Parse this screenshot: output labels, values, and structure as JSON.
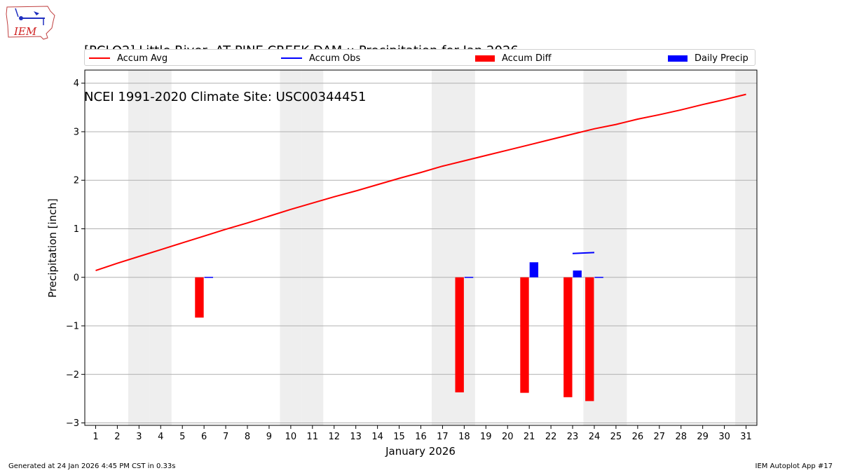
{
  "title_line1": "[PCLO2] Little River  AT PINE CREEK DAM :: Precipitation for Jan 2026",
  "title_line2": "NCEI 1991-2020 Climate Site: USC00344451",
  "logo_text": "IEM",
  "footer_left": "Generated at 24 Jan 2026 4:45 PM CST in 0.33s",
  "footer_right": "IEM Autoplot App #17",
  "colors": {
    "avg": "#ff0000",
    "obs": "#0000ff",
    "diff": "#ff0000",
    "daily": "#0000ff",
    "weekend": "#eeeeee",
    "grid": "#b0b0b0"
  },
  "legend": [
    {
      "label": "Accum Avg",
      "kind": "line",
      "color": "#ff0000"
    },
    {
      "label": "Accum Obs",
      "kind": "line",
      "color": "#0000ff"
    },
    {
      "label": "Accum Diff",
      "kind": "box",
      "color": "#ff0000"
    },
    {
      "label": "Daily Precip",
      "kind": "box",
      "color": "#0000ff"
    }
  ],
  "chart_data": {
    "type": "bar",
    "xlabel": "January 2026",
    "ylabel": "Precipitation [inch]",
    "xlim": [
      0.5,
      31.5
    ],
    "ylim": [
      -3.05,
      4.27
    ],
    "yticks": [
      4,
      3,
      2,
      1,
      0,
      -1,
      -2,
      -3
    ],
    "ytick_labels": [
      "4",
      "3",
      "2",
      "1",
      "0",
      "−1",
      "−2",
      "−3"
    ],
    "days": [
      1,
      2,
      3,
      4,
      5,
      6,
      7,
      8,
      9,
      10,
      11,
      12,
      13,
      14,
      15,
      16,
      17,
      18,
      19,
      20,
      21,
      22,
      23,
      24,
      25,
      26,
      27,
      28,
      29,
      30,
      31
    ],
    "weekend_days": [
      3,
      4,
      10,
      11,
      17,
      18,
      24,
      25,
      31
    ],
    "grid": "horizontal",
    "legend_position": "top",
    "series": [
      {
        "name": "Accum Avg",
        "kind": "line",
        "x": [
          1,
          2,
          3,
          4,
          5,
          6,
          7,
          8,
          9,
          10,
          11,
          12,
          13,
          14,
          15,
          16,
          17,
          18,
          19,
          20,
          21,
          22,
          23,
          24,
          25,
          26,
          27,
          28,
          29,
          30,
          31
        ],
        "values": [
          0.14,
          0.29,
          0.43,
          0.57,
          0.71,
          0.85,
          0.99,
          1.12,
          1.26,
          1.4,
          1.53,
          1.66,
          1.78,
          1.91,
          2.04,
          2.16,
          2.29,
          2.4,
          2.51,
          2.62,
          2.73,
          2.84,
          2.95,
          3.06,
          3.15,
          3.26,
          3.35,
          3.45,
          3.56,
          3.66,
          3.77
        ]
      },
      {
        "name": "Accum Obs",
        "kind": "line",
        "x": [
          23,
          24
        ],
        "values": [
          0.49,
          0.51
        ]
      },
      {
        "name": "Accum Diff",
        "kind": "bar",
        "x": [
          6,
          18,
          21,
          23,
          24
        ],
        "values": [
          -0.83,
          -2.37,
          -2.38,
          -2.47,
          -2.55
        ]
      },
      {
        "name": "Daily Precip",
        "kind": "bar",
        "x": [
          6,
          18,
          21,
          23,
          24
        ],
        "values": [
          0.01,
          0.01,
          0.31,
          0.14,
          0.01
        ]
      }
    ]
  }
}
